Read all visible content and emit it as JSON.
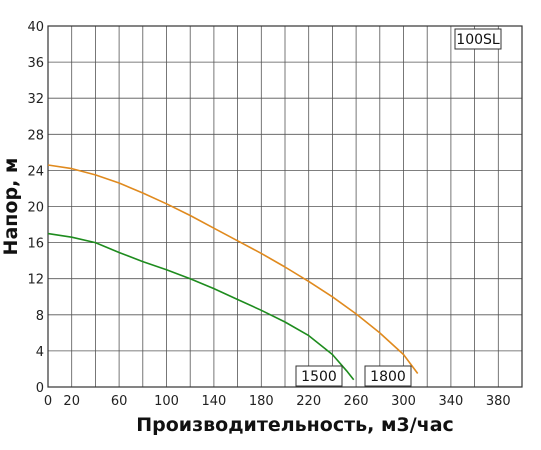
{
  "chart_data": {
    "type": "line",
    "model_label": "100SL",
    "xlabel": "Производительность, м3/час",
    "ylabel": "Напор, м",
    "xlim": [
      0,
      400
    ],
    "ylim": [
      0,
      40
    ],
    "x_ticks": [
      0,
      20,
      60,
      100,
      140,
      180,
      220,
      260,
      300,
      340,
      380
    ],
    "y_ticks": [
      0,
      4,
      8,
      12,
      16,
      20,
      24,
      28,
      32,
      36,
      40
    ],
    "grid": true,
    "series": [
      {
        "name": "1800",
        "color": "#e08a1e",
        "points": [
          [
            0,
            24.6
          ],
          [
            20,
            24.2
          ],
          [
            40,
            23.5
          ],
          [
            60,
            22.6
          ],
          [
            80,
            21.5
          ],
          [
            100,
            20.3
          ],
          [
            120,
            19.0
          ],
          [
            140,
            17.6
          ],
          [
            160,
            16.2
          ],
          [
            180,
            14.8
          ],
          [
            200,
            13.3
          ],
          [
            220,
            11.7
          ],
          [
            240,
            10.0
          ],
          [
            260,
            8.1
          ],
          [
            280,
            6.0
          ],
          [
            300,
            3.6
          ],
          [
            312,
            1.5
          ]
        ]
      },
      {
        "name": "1500",
        "color": "#1e8c1e",
        "points": [
          [
            0,
            17.0
          ],
          [
            20,
            16.6
          ],
          [
            40,
            16.0
          ],
          [
            60,
            14.9
          ],
          [
            80,
            13.9
          ],
          [
            100,
            13.0
          ],
          [
            120,
            12.0
          ],
          [
            140,
            10.9
          ],
          [
            160,
            9.7
          ],
          [
            180,
            8.5
          ],
          [
            200,
            7.2
          ],
          [
            220,
            5.7
          ],
          [
            240,
            3.6
          ],
          [
            252,
            1.8
          ],
          [
            258,
            0.8
          ]
        ]
      }
    ]
  }
}
